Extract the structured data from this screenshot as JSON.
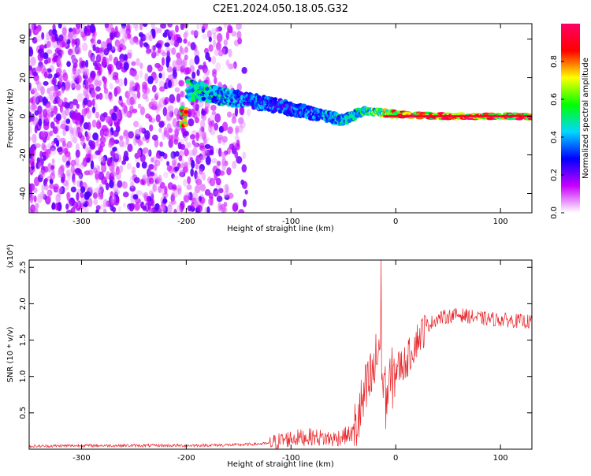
{
  "title": "C2E1.2024.050.18.05.G32",
  "chart_data": [
    {
      "type": "heatmap",
      "xlabel": "Height of straight line (km)",
      "ylabel": "Frequency (Hz)",
      "xlim": [
        -350,
        130
      ],
      "ylim": [
        -50,
        48
      ],
      "xticks": [
        -300,
        -200,
        -100,
        0,
        100
      ],
      "yticks": [
        -40,
        -20,
        0,
        20,
        40
      ],
      "colorbar": {
        "label": "Normalized spectral amplitude",
        "range": [
          0,
          1
        ],
        "ticks": [
          "0.0",
          "0.2",
          "0.4",
          "0.6",
          "0.8"
        ],
        "colors": [
          "#ffffff",
          "#c800ff",
          "#0000ff",
          "#00d8ff",
          "#00ff00",
          "#ffff00",
          "#ff0000",
          "#ff0066"
        ]
      },
      "features": {
        "noise_region_x": [
          -350,
          -140
        ],
        "signal_band": [
          {
            "x": -200,
            "f": 14,
            "amp": 0.55
          },
          {
            "x": -150,
            "f": 9,
            "amp": 0.4
          },
          {
            "x": -100,
            "f": 4,
            "amp": 0.35
          },
          {
            "x": -50,
            "f": -2,
            "amp": 0.45
          },
          {
            "x": -30,
            "f": 3,
            "amp": 0.55
          },
          {
            "x": 0,
            "f": 1,
            "amp": 0.8
          },
          {
            "x": 50,
            "f": 0,
            "amp": 0.9
          },
          {
            "x": 130,
            "f": 0,
            "amp": 0.9
          }
        ]
      }
    },
    {
      "type": "line",
      "xlabel": "Height of straight line (km)",
      "ylabel": "SNR (10 * v/v)",
      "yscale_label": "(x10⁴)",
      "xlim": [
        -350,
        130
      ],
      "ylim": [
        0,
        2.6
      ],
      "xticks": [
        -300,
        -200,
        -100,
        0,
        100
      ],
      "yticks": [
        "0.5",
        "1.0",
        "1.5",
        "2.0",
        "2.5"
      ],
      "color": "#e8252a",
      "series": [
        {
          "x": [
            -350,
            -300,
            -250,
            -200,
            -150,
            -120,
            -100,
            -80,
            -60,
            -40,
            -30,
            -20,
            -15,
            -10,
            0,
            10,
            20,
            30,
            40,
            60,
            80,
            100,
            130
          ],
          "y": [
            0.04,
            0.05,
            0.05,
            0.05,
            0.06,
            0.08,
            0.15,
            0.17,
            0.14,
            0.22,
            0.7,
            1.1,
            1.5,
            0.7,
            1.1,
            1.2,
            1.5,
            1.7,
            1.8,
            1.85,
            1.8,
            1.78,
            1.75
          ]
        }
      ]
    }
  ]
}
